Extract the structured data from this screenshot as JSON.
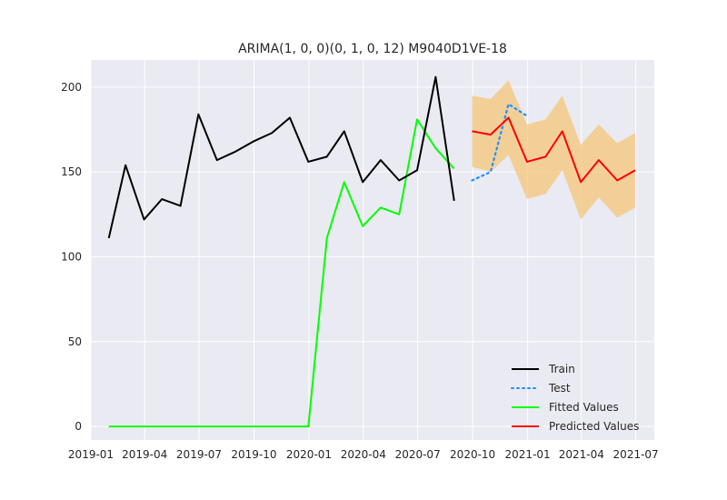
{
  "chart_data": {
    "type": "line",
    "title": "ARIMA(1, 0, 0)(0, 1, 0, 12) M9040D1VE-18",
    "xlabel": "",
    "ylabel": "",
    "grid": true,
    "legend_position": "lower-right",
    "ylim": [
      -8,
      216
    ],
    "xlim": [
      "2019-01-01",
      "2021-08-01"
    ],
    "x_ticks": [
      "2019-01",
      "2019-04",
      "2019-07",
      "2019-10",
      "2020-01",
      "2020-04",
      "2020-07",
      "2020-10",
      "2021-01",
      "2021-04",
      "2021-07"
    ],
    "y_ticks": [
      0,
      50,
      100,
      150,
      200
    ],
    "series": [
      {
        "name": "Train",
        "color": "#000000",
        "style": "solid",
        "x": [
          "2019-01-31",
          "2019-02-28",
          "2019-03-31",
          "2019-04-30",
          "2019-05-31",
          "2019-06-30",
          "2019-07-31",
          "2019-08-31",
          "2019-09-30",
          "2019-10-31",
          "2019-11-30",
          "2019-12-31",
          "2020-01-31",
          "2020-02-29",
          "2020-03-31",
          "2020-04-30",
          "2020-05-31",
          "2020-06-30",
          "2020-07-31",
          "2020-08-31"
        ],
        "values": [
          111,
          154,
          122,
          134,
          130,
          184,
          157,
          162,
          168,
          173,
          182,
          156,
          159,
          174,
          144,
          157,
          145,
          151,
          206,
          133
        ]
      },
      {
        "name": "Test",
        "color": "#1e90ff",
        "style": "dotted",
        "x": [
          "2020-09-30",
          "2020-10-31",
          "2020-11-30",
          "2020-12-31"
        ],
        "values": [
          145,
          150,
          190,
          183
        ]
      },
      {
        "name": "Fitted Values",
        "color": "#00ff00",
        "style": "solid",
        "x": [
          "2019-01-31",
          "2019-02-28",
          "2019-03-31",
          "2019-04-30",
          "2019-05-31",
          "2019-06-30",
          "2019-07-31",
          "2019-08-31",
          "2019-09-30",
          "2019-10-31",
          "2019-11-30",
          "2019-12-31",
          "2020-01-31",
          "2020-02-29",
          "2020-03-31",
          "2020-04-30",
          "2020-05-31",
          "2020-06-30",
          "2020-07-31",
          "2020-08-31"
        ],
        "values": [
          0,
          0,
          0,
          0,
          0,
          0,
          0,
          0,
          0,
          0,
          0,
          0,
          111,
          144,
          118,
          129,
          125,
          181,
          164,
          152
        ]
      },
      {
        "name": "Predicted Values",
        "color": "#ff0000",
        "style": "solid",
        "x": [
          "2020-09-30",
          "2020-10-31",
          "2020-11-30",
          "2020-12-31",
          "2021-01-31",
          "2021-02-28",
          "2021-03-31",
          "2021-04-30",
          "2021-05-31",
          "2021-06-30"
        ],
        "values": [
          174,
          172,
          182,
          156,
          159,
          174,
          144,
          157,
          145,
          151
        ]
      }
    ],
    "confidence_band": {
      "color": "#f5c57a",
      "x": [
        "2020-09-30",
        "2020-10-31",
        "2020-11-30",
        "2020-12-31",
        "2021-01-31",
        "2021-02-28",
        "2021-03-31",
        "2021-04-30",
        "2021-05-31",
        "2021-06-30"
      ],
      "lower": [
        153,
        150,
        160,
        134,
        137,
        151,
        122,
        135,
        123,
        129
      ],
      "upper": [
        195,
        193,
        204,
        178,
        181,
        195,
        166,
        178,
        167,
        173
      ]
    }
  }
}
